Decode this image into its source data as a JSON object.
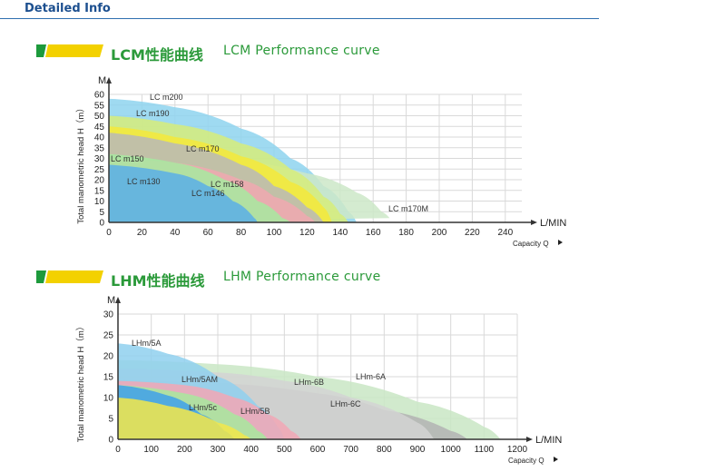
{
  "header": {
    "title": "Detailed Info"
  },
  "colors": {
    "header_text": "#1c4f8f",
    "section_title": "#2b9a3a",
    "icon_green": "#1d9a3c",
    "icon_yellow": "#f3d100",
    "grid": "#d9d9d9",
    "axis": "#333333"
  },
  "icons": {
    "section_icon": "green-yellow-bar-icon",
    "axis_arrow": "arrow-icon",
    "capacity_arrow": "triangle-right-icon"
  },
  "chart_data": [
    {
      "type": "area",
      "title_cn": "LCM性能曲线",
      "title_en": "LCM Performance curve",
      "xlabel": "Capacity Q",
      "ylabel": "Total manometric head H（m）",
      "x_unit": "L/MIN",
      "y_unit": "M",
      "xlim": [
        0,
        250
      ],
      "ylim": [
        0,
        60
      ],
      "xticks": [
        0,
        20,
        40,
        60,
        80,
        100,
        120,
        140,
        160,
        180,
        200,
        220,
        240
      ],
      "yticks": [
        0,
        5,
        10,
        15,
        20,
        25,
        30,
        35,
        40,
        45,
        50,
        55,
        60
      ],
      "grid": true,
      "series": [
        {
          "name": "LC m200",
          "color": "#8ed3ef",
          "points": [
            [
              0,
              58
            ],
            [
              40,
              54
            ],
            [
              80,
              44
            ],
            [
              110,
              30
            ],
            [
              130,
              17
            ],
            [
              145,
              5
            ],
            [
              150,
              0
            ]
          ]
        },
        {
          "name": "LC m170M",
          "color": "#cde8c8",
          "points": [
            [
              0,
              33
            ],
            [
              60,
              31
            ],
            [
              120,
              23
            ],
            [
              150,
              14
            ],
            [
              165,
              5
            ],
            [
              170,
              2
            ]
          ]
        },
        {
          "name": "LC m190",
          "color": "#d6ec7a",
          "points": [
            [
              0,
              50
            ],
            [
              40,
              46
            ],
            [
              80,
              37
            ],
            [
              110,
              25
            ],
            [
              130,
              12
            ],
            [
              140,
              4
            ],
            [
              145,
              0
            ]
          ]
        },
        {
          "name": "LC m170",
          "color": "#f5e93a",
          "points": [
            [
              0,
              45
            ],
            [
              40,
              40
            ],
            [
              80,
              31
            ],
            [
              110,
              19
            ],
            [
              130,
              7
            ],
            [
              135,
              0
            ]
          ]
        },
        {
          "name": "LC m158",
          "color": "#b9b9b9",
          "points": [
            [
              0,
              42
            ],
            [
              40,
              37
            ],
            [
              80,
              27
            ],
            [
              100,
              17
            ],
            [
              120,
              7
            ],
            [
              130,
              0
            ]
          ]
        },
        {
          "name": "LC m146",
          "color": "#f0a8b0",
          "points": [
            [
              0,
              30
            ],
            [
              40,
              28
            ],
            [
              80,
              20
            ],
            [
              100,
              12
            ],
            [
              120,
              3
            ],
            [
              125,
              0
            ]
          ]
        },
        {
          "name": "LC m150",
          "color": "#a7e9a0",
          "points": [
            [
              0,
              32
            ],
            [
              40,
              28
            ],
            [
              70,
              20
            ],
            [
              90,
              10
            ],
            [
              105,
              2
            ],
            [
              110,
              0
            ]
          ]
        },
        {
          "name": "LC m130",
          "color": "#5aaee8",
          "points": [
            [
              0,
              27
            ],
            [
              40,
              23
            ],
            [
              60,
              17
            ],
            [
              75,
              10
            ],
            [
              88,
              2
            ],
            [
              90,
              0
            ]
          ]
        }
      ]
    },
    {
      "type": "area",
      "title_cn": "LHM性能曲线",
      "title_en": "LHM Performance curve",
      "xlabel": "Capacity Q",
      "ylabel": "Total manometric head H（m）",
      "x_unit": "L/MIN",
      "y_unit": "M",
      "xlim": [
        0,
        1200
      ],
      "ylim": [
        0,
        30
      ],
      "xticks": [
        0,
        100,
        200,
        300,
        400,
        500,
        600,
        700,
        800,
        900,
        1000,
        1100,
        1200
      ],
      "yticks": [
        0,
        5,
        10,
        15,
        20,
        25,
        30
      ],
      "grid": true,
      "series": [
        {
          "name": "LHm-6A",
          "color": "#c9e6c4",
          "points": [
            [
              0,
              19
            ],
            [
              300,
              18
            ],
            [
              600,
              15
            ],
            [
              900,
              9
            ],
            [
              1100,
              3
            ],
            [
              1150,
              0
            ]
          ]
        },
        {
          "name": "LHm-6C",
          "color": "#b3b3b3",
          "points": [
            [
              0,
              14
            ],
            [
              300,
              13.5
            ],
            [
              600,
              11
            ],
            [
              800,
              7
            ],
            [
              1000,
              2
            ],
            [
              1050,
              0
            ]
          ]
        },
        {
          "name": "LHm-6B",
          "color": "#d4d4d4",
          "points": [
            [
              0,
              17
            ],
            [
              300,
              16
            ],
            [
              500,
              14
            ],
            [
              700,
              10
            ],
            [
              900,
              4
            ],
            [
              950,
              0
            ]
          ]
        },
        {
          "name": "LHm/5A",
          "color": "#8fd0ee",
          "points": [
            [
              0,
              23
            ],
            [
              150,
              20.5
            ],
            [
              300,
              15
            ],
            [
              420,
              8
            ],
            [
              480,
              3
            ],
            [
              500,
              0
            ]
          ]
        },
        {
          "name": "LHm/5AM",
          "color": "#f2a7b5",
          "points": [
            [
              0,
              14
            ],
            [
              200,
              13
            ],
            [
              350,
              10
            ],
            [
              450,
              6
            ],
            [
              520,
              2
            ],
            [
              550,
              0
            ]
          ]
        },
        {
          "name": "LHm/5B",
          "color": "#a8e79e",
          "points": [
            [
              0,
              13
            ],
            [
              200,
              11
            ],
            [
              350,
              6
            ],
            [
              420,
              2
            ],
            [
              450,
              0
            ]
          ]
        },
        {
          "name": "LHm/5c",
          "color": "#3fa1ea",
          "points": [
            [
              0,
              13
            ],
            [
              150,
              10.5
            ],
            [
              250,
              6
            ],
            [
              320,
              2
            ],
            [
              350,
              0
            ]
          ]
        },
        {
          "name": "",
          "color": "#f3e84a",
          "points": [
            [
              0,
              10
            ],
            [
              150,
              8
            ],
            [
              300,
              4
            ],
            [
              380,
              1
            ],
            [
              400,
              0
            ]
          ]
        }
      ]
    }
  ]
}
